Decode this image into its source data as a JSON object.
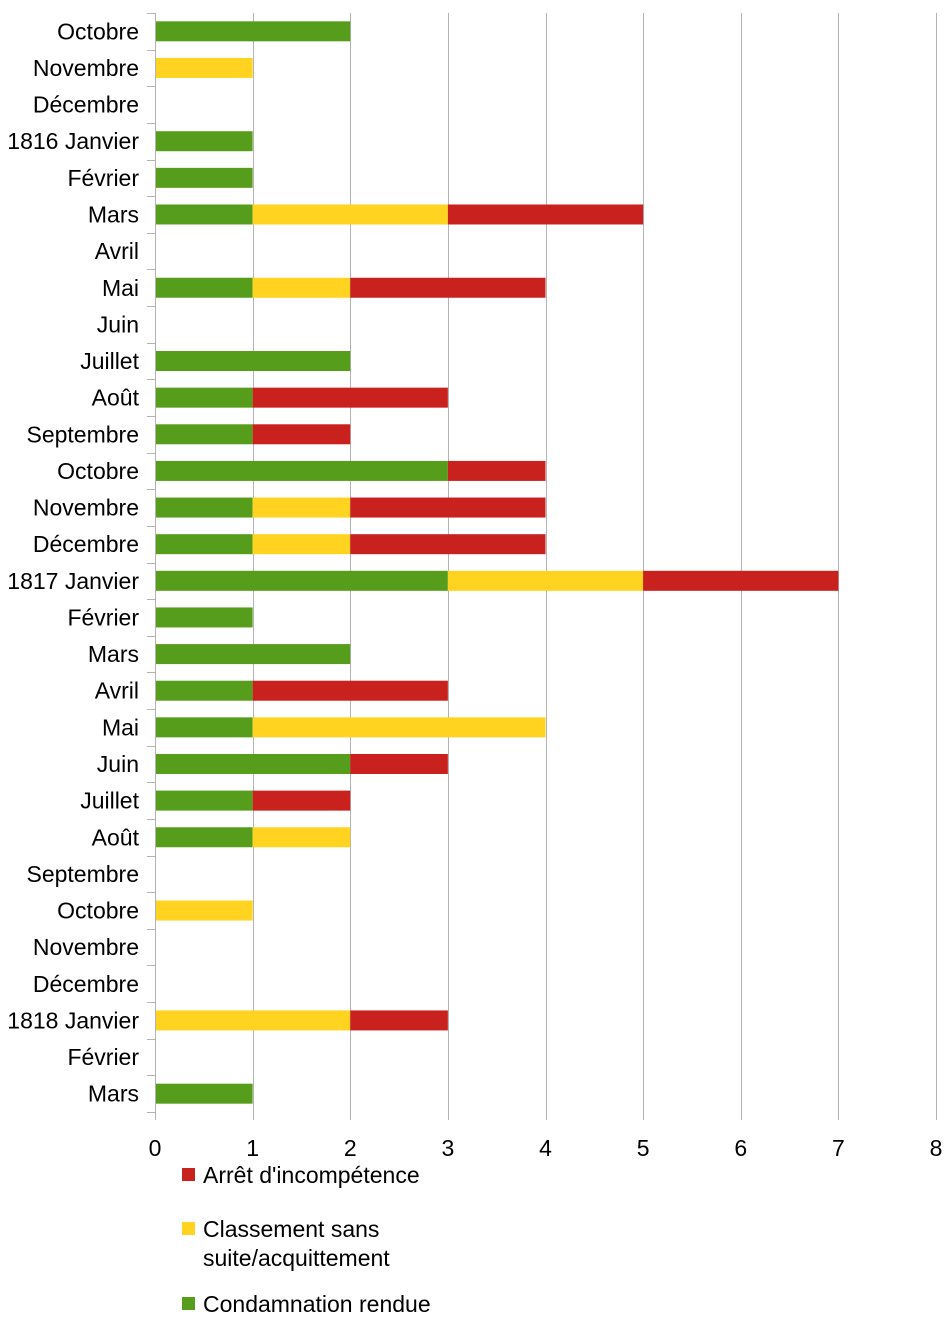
{
  "chart_data": {
    "type": "bar",
    "orientation": "horizontal",
    "stacked": true,
    "categories": [
      "Octobre",
      "Novembre",
      "Décembre",
      "1816 Janvier",
      "Février",
      "Mars",
      "Avril",
      "Mai",
      "Juin",
      "Juillet",
      "Août",
      "Septembre",
      "Octobre",
      "Novembre",
      "Décembre",
      "1817 Janvier",
      "Février",
      "Mars",
      "Avril",
      "Mai",
      "Juin",
      "Juillet",
      "Août",
      "Septembre",
      "Octobre",
      "Novembre",
      "Décembre",
      "1818 Janvier",
      "Février",
      "Mars"
    ],
    "series": [
      {
        "name": "Condamnation rendue",
        "color": "#579d1c",
        "values": [
          2,
          0,
          0,
          1,
          1,
          1,
          0,
          1,
          0,
          2,
          1,
          1,
          3,
          1,
          1,
          3,
          1,
          2,
          1,
          1,
          2,
          1,
          1,
          0,
          0,
          0,
          0,
          0,
          0,
          1
        ]
      },
      {
        "name": "Classement sans suite/acquittement",
        "color": "#ffd320",
        "values": [
          0,
          1,
          0,
          0,
          0,
          2,
          0,
          1,
          0,
          0,
          0,
          0,
          0,
          1,
          1,
          2,
          0,
          0,
          0,
          3,
          0,
          0,
          1,
          0,
          1,
          0,
          0,
          2,
          0,
          0
        ]
      },
      {
        "name": "Arrêt d'incompétence",
        "color": "#c9211e",
        "values": [
          0,
          0,
          0,
          0,
          0,
          2,
          0,
          2,
          0,
          0,
          2,
          1,
          1,
          2,
          2,
          2,
          0,
          0,
          2,
          0,
          1,
          1,
          0,
          0,
          0,
          0,
          0,
          1,
          0,
          0
        ]
      }
    ],
    "xlim": [
      0,
      8
    ],
    "xticks": [
      "0",
      "1",
      "2",
      "3",
      "4",
      "5",
      "6",
      "7",
      "8"
    ],
    "grid": true,
    "legend": {
      "placement": "bottom",
      "entries": [
        {
          "lines": [
            "Arrêt d'incompétence"
          ],
          "color": "#c9211e"
        },
        {
          "lines": [
            "Classement sans",
            "suite/acquittement"
          ],
          "color": "#ffd320"
        },
        {
          "lines": [
            "Condamnation rendue"
          ],
          "color": "#579d1c"
        }
      ]
    },
    "title": "",
    "xlabel": "",
    "ylabel": ""
  }
}
